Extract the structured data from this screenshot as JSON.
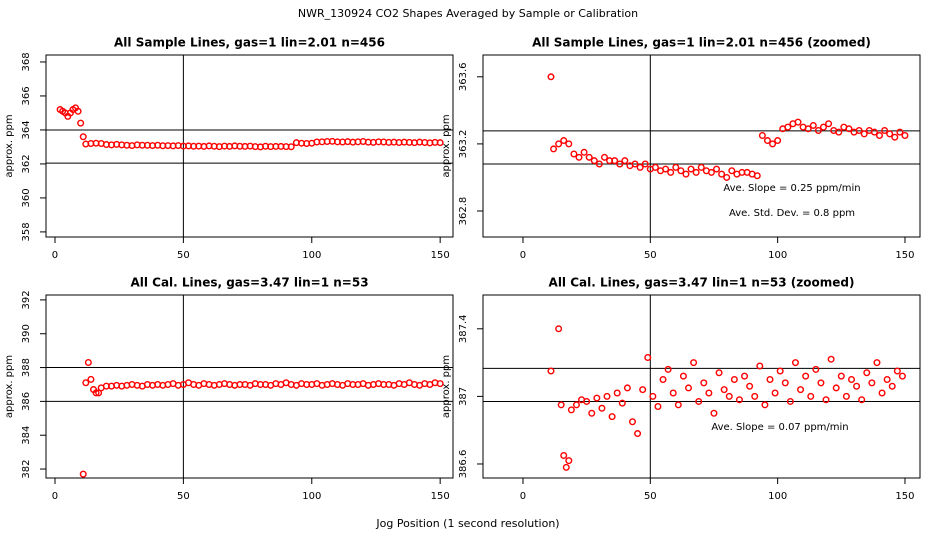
{
  "title": "NWR_130924  CO2 Shapes Averaged by Sample or Calibration",
  "xlabel": "Jog Position (1 second resolution)",
  "chart_data": [
    {
      "type": "scatter",
      "title": "All Sample Lines, gas=1 lin=2.01 n=456",
      "ylabel": "approx. ppm",
      "color": "#ff0000",
      "xlim": [
        -3.5,
        155
      ],
      "xticks": [
        0,
        50,
        100,
        150
      ],
      "ylim": [
        357.7,
        368.41
      ],
      "yticks": [
        358,
        360,
        362,
        364,
        366,
        368
      ],
      "hlines": [
        364.0,
        362.05
      ],
      "vlines": [
        50
      ],
      "x": [
        2,
        3,
        4,
        5,
        6,
        7,
        8,
        9,
        10,
        11,
        12,
        14,
        16,
        18,
        20,
        22,
        24,
        26,
        28,
        30,
        32,
        34,
        36,
        38,
        40,
        42,
        44,
        46,
        48,
        50,
        52,
        54,
        56,
        58,
        60,
        62,
        64,
        66,
        68,
        70,
        72,
        74,
        76,
        78,
        80,
        82,
        84,
        86,
        88,
        90,
        92,
        94,
        96,
        98,
        100,
        102,
        104,
        106,
        108,
        110,
        112,
        114,
        116,
        118,
        120,
        122,
        124,
        126,
        128,
        130,
        132,
        134,
        136,
        138,
        140,
        142,
        144,
        146,
        148,
        150
      ],
      "values": [
        365.2,
        365.1,
        365.0,
        364.8,
        365.0,
        365.2,
        365.3,
        365.1,
        364.4,
        363.6,
        363.17,
        363.2,
        363.22,
        363.2,
        363.14,
        363.12,
        363.15,
        363.12,
        363.1,
        363.08,
        363.12,
        363.1,
        363.1,
        363.08,
        363.1,
        363.07,
        363.08,
        363.06,
        363.08,
        363.05,
        363.06,
        363.04,
        363.05,
        363.03,
        363.06,
        363.04,
        363.02,
        363.05,
        363.03,
        363.06,
        363.04,
        363.03,
        363.05,
        363.02,
        363.0,
        363.04,
        363.02,
        363.03,
        363.03,
        363.02,
        363.01,
        363.25,
        363.22,
        363.2,
        363.22,
        363.29,
        363.3,
        363.32,
        363.33,
        363.3,
        363.29,
        363.31,
        363.28,
        363.3,
        363.32,
        363.28,
        363.27,
        363.3,
        363.29,
        363.27,
        363.28,
        363.26,
        363.28,
        363.27,
        363.25,
        363.28,
        363.26,
        363.24,
        363.27,
        363.25
      ]
    },
    {
      "type": "scatter",
      "title": "All Sample Lines, gas=1 lin=2.01 n=456 (zoomed)",
      "ylabel": "approx. ppm",
      "color": "#ff0000",
      "xlim": [
        -15.7,
        155.9
      ],
      "xticks": [
        0,
        50,
        100,
        150
      ],
      "ylim": [
        362.645,
        363.73
      ],
      "yticks": [
        362.8,
        363.2,
        363.6
      ],
      "hlines": [
        363.278,
        363.08
      ],
      "vlines": [
        50
      ],
      "annotations": [
        "Ave. Slope =  0.25  ppm/min",
        "Ave. Std. Dev. =  0.8  ppm"
      ],
      "x": [
        11,
        12,
        14,
        16,
        18,
        20,
        22,
        24,
        26,
        28,
        30,
        32,
        34,
        36,
        38,
        40,
        42,
        44,
        46,
        48,
        50,
        52,
        54,
        56,
        58,
        60,
        62,
        64,
        66,
        68,
        70,
        72,
        74,
        76,
        78,
        80,
        82,
        84,
        86,
        88,
        90,
        92,
        94,
        96,
        98,
        100,
        102,
        104,
        106,
        108,
        110,
        112,
        114,
        116,
        118,
        120,
        122,
        124,
        126,
        128,
        130,
        132,
        134,
        136,
        138,
        140,
        142,
        144,
        146,
        148,
        150
      ],
      "values": [
        363.6,
        363.17,
        363.2,
        363.22,
        363.2,
        363.14,
        363.12,
        363.15,
        363.12,
        363.1,
        363.08,
        363.12,
        363.1,
        363.1,
        363.08,
        363.1,
        363.07,
        363.08,
        363.06,
        363.08,
        363.05,
        363.06,
        363.04,
        363.05,
        363.03,
        363.06,
        363.04,
        363.02,
        363.05,
        363.03,
        363.06,
        363.04,
        363.03,
        363.05,
        363.02,
        363.0,
        363.04,
        363.02,
        363.03,
        363.03,
        363.02,
        363.01,
        363.25,
        363.22,
        363.2,
        363.22,
        363.29,
        363.3,
        363.32,
        363.33,
        363.3,
        363.29,
        363.31,
        363.28,
        363.3,
        363.32,
        363.28,
        363.27,
        363.3,
        363.29,
        363.27,
        363.28,
        363.26,
        363.28,
        363.27,
        363.25,
        363.28,
        363.26,
        363.24,
        363.27,
        363.25
      ]
    },
    {
      "type": "scatter",
      "title": "All Cal. Lines, gas=3.47 lin=1 n=53",
      "ylabel": "approx. ppm",
      "color": "#ff0000",
      "xlim": [
        -3.5,
        155
      ],
      "xticks": [
        0,
        50,
        100,
        150
      ],
      "ylim": [
        381.47,
        392.29
      ],
      "yticks": [
        382,
        384,
        386,
        388,
        390,
        392
      ],
      "hlines": [
        388,
        386
      ],
      "vlines": [
        50
      ],
      "x": [
        11,
        12,
        13,
        14,
        15,
        16,
        17,
        18,
        20,
        22,
        24,
        26,
        28,
        30,
        32,
        34,
        36,
        38,
        40,
        42,
        44,
        46,
        48,
        50,
        52,
        54,
        56,
        58,
        60,
        62,
        64,
        66,
        68,
        70,
        72,
        74,
        76,
        78,
        80,
        82,
        84,
        86,
        88,
        90,
        92,
        94,
        96,
        98,
        100,
        102,
        104,
        106,
        108,
        110,
        112,
        114,
        116,
        118,
        120,
        122,
        124,
        126,
        128,
        130,
        132,
        134,
        136,
        138,
        140,
        142,
        144,
        146,
        148,
        150
      ],
      "values": [
        381.7,
        387.1,
        388.3,
        387.3,
        386.7,
        386.5,
        386.5,
        386.8,
        386.9,
        386.9,
        386.95,
        386.9,
        386.95,
        387.0,
        386.95,
        386.9,
        387.0,
        386.95,
        387.0,
        386.95,
        387.0,
        387.05,
        386.95,
        387.0,
        387.1,
        387.0,
        386.95,
        387.05,
        387.0,
        386.95,
        387.0,
        387.05,
        387.0,
        386.95,
        387.0,
        387.0,
        386.95,
        387.05,
        387.0,
        387.0,
        386.95,
        387.05,
        387.0,
        387.1,
        387.0,
        386.95,
        387.05,
        387.0,
        387.0,
        387.05,
        386.95,
        387.0,
        387.05,
        387.0,
        386.95,
        387.05,
        387.0,
        387.0,
        387.05,
        386.95,
        387.0,
        387.05,
        387.0,
        387.0,
        386.95,
        387.05,
        387.0,
        387.1,
        387.0,
        386.95,
        387.05,
        387.0,
        387.1,
        387.05
      ]
    },
    {
      "type": "scatter",
      "title": "All Cal. Lines, gas=3.47 lin=1 n=53 (zoomed)",
      "ylabel": "approx. ppm",
      "color": "#ff0000",
      "xlim": [
        -15.7,
        155.9
      ],
      "xticks": [
        0,
        50,
        100,
        150
      ],
      "ylim": [
        386.517,
        387.6
      ],
      "yticks": [
        386.6,
        387.0,
        387.4
      ],
      "hlines": [
        387.166,
        386.97
      ],
      "vlines": [
        50
      ],
      "annotations": [
        "Ave. Slope =  0.07  ppm/min"
      ],
      "x": [
        11,
        14,
        15,
        16,
        17,
        18,
        19,
        21,
        23,
        25,
        27,
        29,
        31,
        33,
        35,
        37,
        39,
        41,
        43,
        45,
        47,
        49,
        51,
        53,
        55,
        57,
        59,
        61,
        63,
        65,
        67,
        69,
        71,
        73,
        75,
        77,
        79,
        81,
        83,
        85,
        87,
        89,
        91,
        93,
        95,
        97,
        99,
        101,
        103,
        105,
        107,
        109,
        111,
        113,
        115,
        117,
        119,
        121,
        123,
        125,
        127,
        129,
        131,
        133,
        135,
        137,
        139,
        141,
        143,
        145,
        147,
        149
      ],
      "values": [
        387.15,
        387.4,
        386.95,
        386.65,
        386.58,
        386.62,
        386.92,
        386.95,
        386.98,
        386.97,
        386.9,
        386.99,
        386.93,
        387.0,
        386.88,
        387.02,
        386.96,
        387.05,
        386.85,
        386.78,
        387.04,
        387.23,
        387.0,
        386.94,
        387.1,
        387.16,
        387.02,
        386.95,
        387.12,
        387.05,
        387.2,
        386.97,
        387.08,
        387.02,
        386.9,
        387.14,
        387.04,
        387.0,
        387.1,
        386.98,
        387.12,
        387.06,
        387.0,
        387.18,
        386.95,
        387.1,
        387.02,
        387.15,
        387.08,
        386.97,
        387.2,
        387.04,
        387.12,
        387.0,
        387.16,
        387.08,
        386.98,
        387.22,
        387.05,
        387.12,
        387.0,
        387.1,
        387.06,
        386.98,
        387.14,
        387.08,
        387.2,
        387.02,
        387.1,
        387.06,
        387.15,
        387.12
      ]
    }
  ]
}
